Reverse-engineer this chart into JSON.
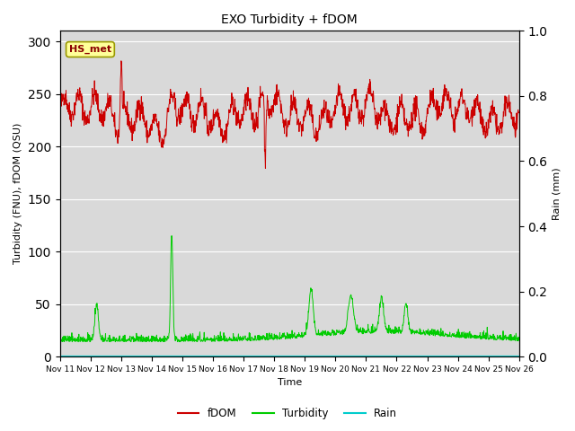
{
  "title": "EXO Turbidity + fDOM",
  "xlabel": "Time",
  "ylabel_left": "Turbidity (FNU), fDOM (QSU)",
  "ylabel_right": "Rain (mm)",
  "x_tick_labels": [
    "Nov 11",
    "Nov 12",
    "Nov 13",
    "Nov 14",
    "Nov 15",
    "Nov 16",
    "Nov 17",
    "Nov 18",
    "Nov 19",
    "Nov 20",
    "Nov 21",
    "Nov 22",
    "Nov 23",
    "Nov 24",
    "Nov 25",
    "Nov 26"
  ],
  "ylim_left": [
    0,
    310
  ],
  "ylim_right": [
    0,
    1.0
  ],
  "yticks_left": [
    0,
    50,
    100,
    150,
    200,
    250,
    300
  ],
  "yticks_right": [
    0.0,
    0.2,
    0.4,
    0.6,
    0.8,
    1.0
  ],
  "fdom_color": "#cc0000",
  "turbidity_color": "#00cc00",
  "rain_color": "#00cccc",
  "bg_color": "#d9d9d9",
  "annotation_text": "HS_met",
  "n_days": 15,
  "seed": 42,
  "figsize": [
    6.4,
    4.8
  ],
  "dpi": 100
}
